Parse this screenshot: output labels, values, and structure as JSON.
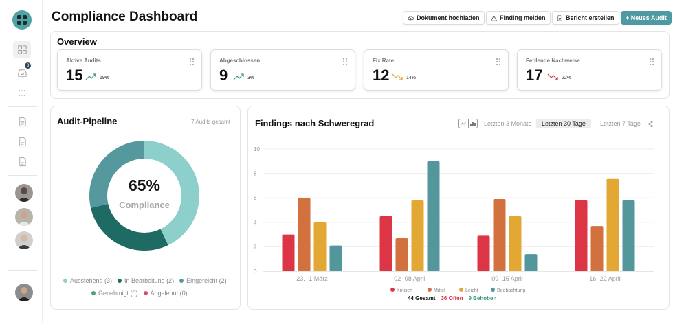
{
  "header": {
    "title": "Compliance Dashboard",
    "buttons": {
      "upload": "Dokument hochladen",
      "report_finding": "Finding melden",
      "create_report": "Bericht erstellen",
      "new_audit": "+ Neues Audit"
    }
  },
  "sidebar": {
    "notification_count": "3"
  },
  "overview": {
    "title": "Overview",
    "kpis": [
      {
        "label": "Aktive Audits",
        "value": "15",
        "pct": "19%",
        "trend": "up",
        "color": "#3a9a7a"
      },
      {
        "label": "Abgeschlossen",
        "value": "9",
        "pct": "3%",
        "trend": "up",
        "color": "#3a9a7a"
      },
      {
        "label": "Fix Rate",
        "value": "12",
        "pct": "14%",
        "trend": "down",
        "color": "#e0a22e"
      },
      {
        "label": "Fehlende Nachweise",
        "value": "17",
        "pct": "22%",
        "trend": "down",
        "color": "#d63440"
      }
    ]
  },
  "pipeline": {
    "title": "Audit-Pipeline",
    "total": "7 Audits gesamt",
    "center_value": "65%",
    "center_label": "Compliance",
    "segments": [
      {
        "label": "Ausstehend",
        "count": 3,
        "display": "Ausstehend (3)",
        "color": "#8ccfcb"
      },
      {
        "label": "In Bearbeitung",
        "count": 2,
        "display": "In Bearbeitung (2)",
        "color": "#1d6b62"
      },
      {
        "label": "Eingereicht",
        "count": 2,
        "display": "Eingereicht (2)",
        "color": "#55999f"
      },
      {
        "label": "Genehmigt",
        "count": 0,
        "display": "Genehmigt (0)",
        "color": "#49a472"
      },
      {
        "label": "Abgelehnt",
        "count": 0,
        "display": "Abgelehnt (0)",
        "color": "#d9506a"
      }
    ]
  },
  "findings": {
    "title": "Findings nach Schweregrad",
    "ranges": [
      "Letzten 3 Monate",
      "Letzten 30 Tage",
      "Letzten 7 Tage"
    ],
    "selected_range": "Letzten 30 Tage",
    "summary": {
      "total": "44 Gesamt",
      "open": "36 Offen",
      "fixed": "9 Behoben",
      "total_color": "#111111",
      "open_color": "#d63440",
      "fixed_color": "#3a9a7a"
    }
  },
  "chart_data": {
    "type": "bar",
    "categories": [
      "23.- 1 März",
      "02- 08 April",
      "09- 15 April",
      "16- 22 April"
    ],
    "series": [
      {
        "name": "Kritisch",
        "values": [
          3.0,
          4.5,
          2.9,
          5.8
        ],
        "color": "#dc3545"
      },
      {
        "name": "Mittel",
        "values": [
          6.0,
          2.7,
          5.9,
          3.7
        ],
        "color": "#d2703e"
      },
      {
        "name": "Leicht",
        "values": [
          4.0,
          5.8,
          4.5,
          7.6
        ],
        "color": "#e2a833"
      },
      {
        "name": "Beobachtung",
        "values": [
          2.1,
          9.0,
          1.4,
          5.8
        ],
        "color": "#53979d"
      }
    ],
    "ylim": [
      0,
      10
    ],
    "yticks": [
      "0",
      "2",
      "4",
      "6",
      "8",
      "10"
    ],
    "grid": true,
    "legend": "bottom"
  }
}
